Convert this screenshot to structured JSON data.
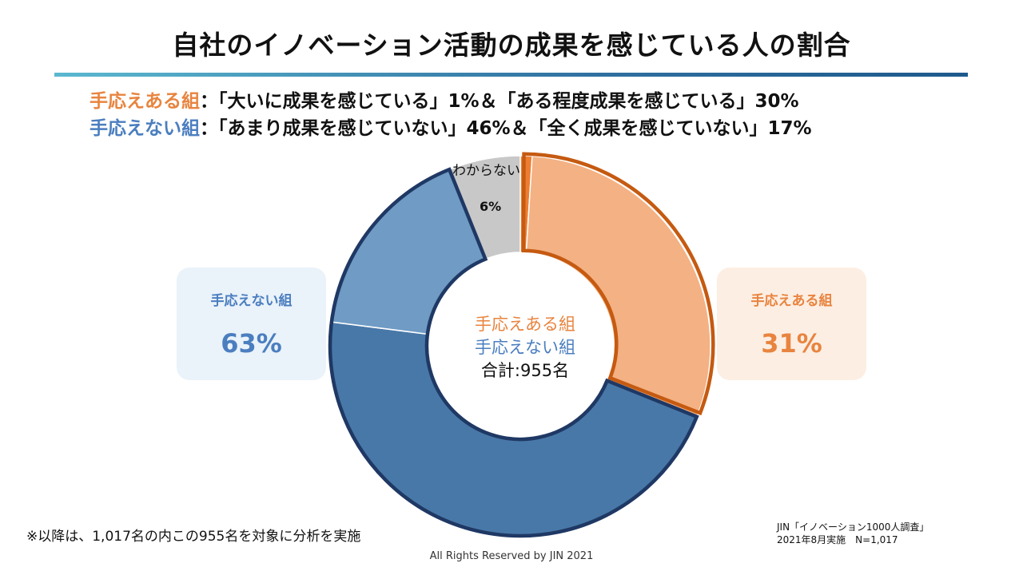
{
  "title": "自社のイノベーション活動の成果を感じている人の割合",
  "summary": {
    "positive_label": "手応えある組",
    "positive_detail": "：「大いに成果を感じている」1%＆「ある程度成果を感じている」30%",
    "negative_label": "手応えない組",
    "negative_detail": "：「あまり成果を感じていない」46%＆「全く成果を感じていない」17%"
  },
  "boxes": {
    "negative": {
      "label": "手応えない組",
      "value": "63%"
    },
    "positive": {
      "label": "手応えある組",
      "value": "31%"
    }
  },
  "center": {
    "positive": "手応えある組",
    "negative": "手応えない組",
    "total": "合計:955名"
  },
  "unknown": {
    "label": "わからない",
    "value": "6%"
  },
  "footnote": "※以降は、1,017名の内この955名を対象に分析を実施",
  "source": {
    "line1": "JIN「イノベーション1000人調査」",
    "line2": "2021年8月実施　N=1,017"
  },
  "copyright": "All Rights Reserved by JIN 2021",
  "chart_data": {
    "type": "pie",
    "subtype": "donut",
    "slices": [
      {
        "name": "大いに成果を感じている",
        "value": 1,
        "group": "positive",
        "color": "#ed7d31"
      },
      {
        "name": "ある程度成果を感じている",
        "value": 30,
        "group": "positive",
        "color": "#f4b183"
      },
      {
        "name": "あまり成果を感じていない",
        "value": 46,
        "group": "negative",
        "color": "#4878a8"
      },
      {
        "name": "全く成果を感じていない",
        "value": 17,
        "group": "negative",
        "color": "#6f9bc4"
      },
      {
        "name": "わからない",
        "value": 6,
        "group": "unknown",
        "color": "#c8c8c8"
      }
    ],
    "group_totals": {
      "positive": 31,
      "negative": 63,
      "unknown": 6
    },
    "group_outline_colors": {
      "positive": "#c55a11",
      "negative": "#1f3864"
    }
  }
}
